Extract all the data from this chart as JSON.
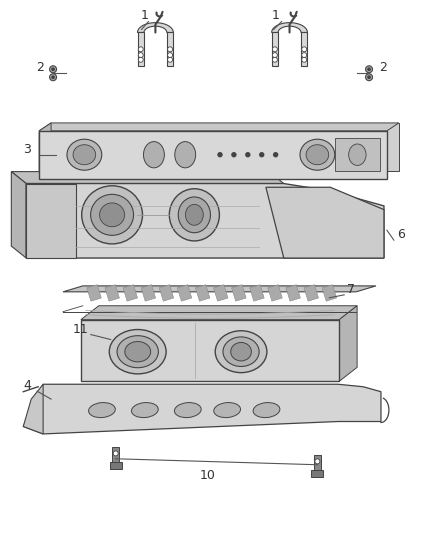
{
  "bg_color": "#ffffff",
  "lc": "#555555",
  "pc": "#d8d8d8",
  "pc2": "#c8c8c8",
  "pe": "#444444",
  "dark": "#888888",
  "darker": "#666666"
}
